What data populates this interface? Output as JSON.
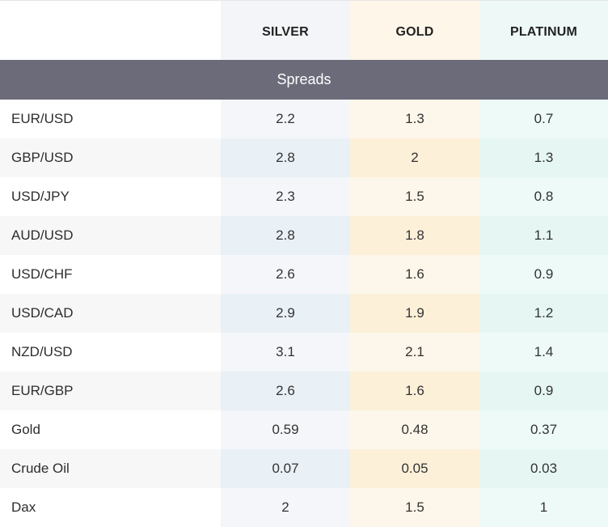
{
  "columns": {
    "label": "",
    "silver": "SILVER",
    "gold": "GOLD",
    "platinum": "PLATINUM"
  },
  "section": {
    "title": "Spreads"
  },
  "rows": [
    {
      "instrument": "EUR/USD",
      "silver": "2.2",
      "gold": "1.3",
      "platinum": "0.7"
    },
    {
      "instrument": "GBP/USD",
      "silver": "2.8",
      "gold": "2",
      "platinum": "1.3"
    },
    {
      "instrument": "USD/JPY",
      "silver": "2.3",
      "gold": "1.5",
      "platinum": "0.8"
    },
    {
      "instrument": "AUD/USD",
      "silver": "2.8",
      "gold": "1.8",
      "platinum": "1.1"
    },
    {
      "instrument": "USD/CHF",
      "silver": "2.6",
      "gold": "1.6",
      "platinum": "0.9"
    },
    {
      "instrument": "USD/CAD",
      "silver": "2.9",
      "gold": "1.9",
      "platinum": "1.2"
    },
    {
      "instrument": "NZD/USD",
      "silver": "3.1",
      "gold": "2.1",
      "platinum": "1.4"
    },
    {
      "instrument": "EUR/GBP",
      "silver": "2.6",
      "gold": "1.6",
      "platinum": "0.9"
    },
    {
      "instrument": "Gold",
      "silver": "0.59",
      "gold": "0.48",
      "platinum": "0.37"
    },
    {
      "instrument": "Crude Oil",
      "silver": "0.07",
      "gold": "0.05",
      "platinum": "0.03"
    },
    {
      "instrument": "Dax",
      "silver": "2",
      "gold": "1.5",
      "platinum": "1"
    }
  ]
}
